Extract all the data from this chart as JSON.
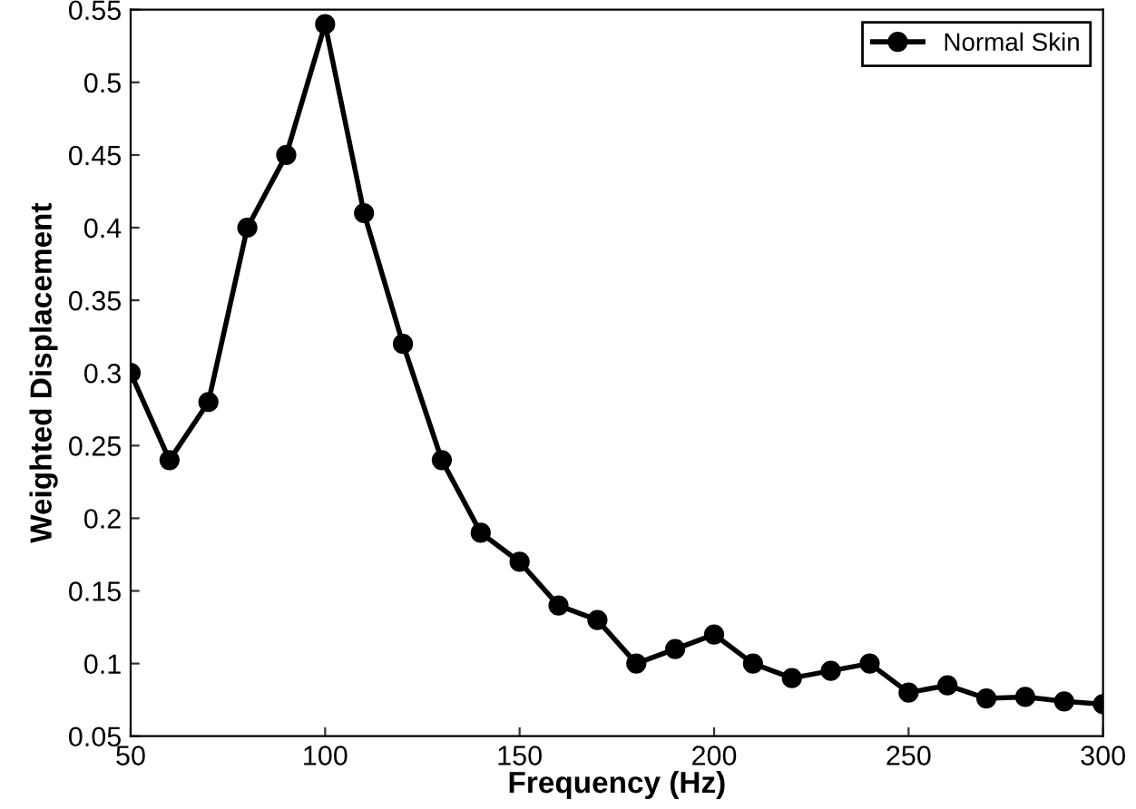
{
  "chart_data": {
    "type": "line",
    "xlabel": "Frequency (Hz)",
    "ylabel": "Weighted Displacement",
    "x": [
      50,
      60,
      70,
      80,
      90,
      100,
      110,
      120,
      130,
      140,
      150,
      160,
      170,
      180,
      190,
      200,
      210,
      220,
      230,
      240,
      250,
      260,
      270,
      280,
      290,
      300
    ],
    "series": [
      {
        "name": "Normal Skin",
        "color": "#000000",
        "values": [
          0.3,
          0.24,
          0.28,
          0.4,
          0.45,
          0.54,
          0.41,
          0.32,
          0.24,
          0.19,
          0.17,
          0.14,
          0.13,
          0.1,
          0.11,
          0.12,
          0.1,
          0.09,
          0.095,
          0.1,
          0.08,
          0.085,
          0.076,
          0.077,
          0.074,
          0.072
        ]
      }
    ],
    "xlim": [
      50,
      300
    ],
    "ylim": [
      0.05,
      0.55
    ],
    "xticks": [
      50,
      100,
      150,
      200,
      250,
      300
    ],
    "yticks": [
      0.05,
      0.1,
      0.15,
      0.2,
      0.25,
      0.3,
      0.35,
      0.4,
      0.45,
      0.5,
      0.55
    ],
    "marker": "circle",
    "line_style": "solid",
    "legend": "top right",
    "grid": false
  }
}
